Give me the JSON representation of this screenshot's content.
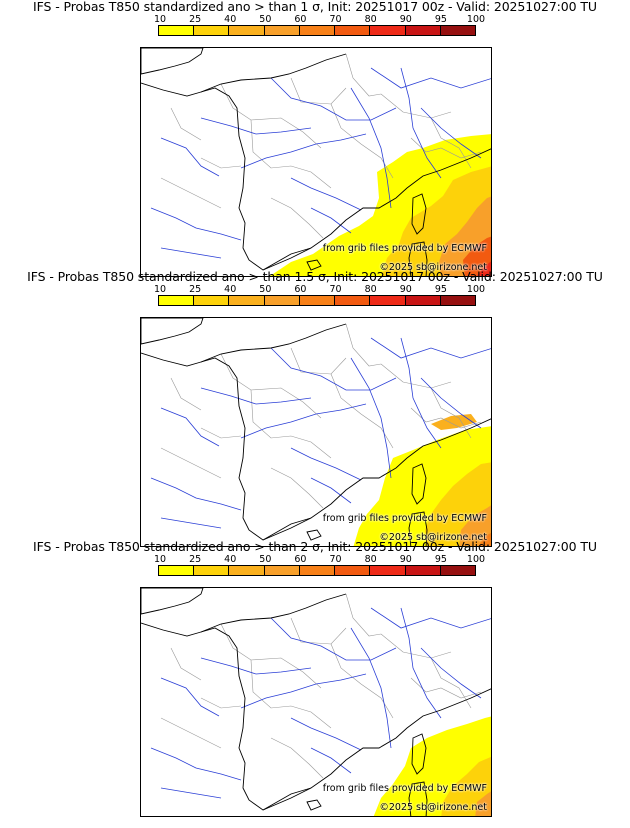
{
  "panels": [
    {
      "title": "IFS - Probas T850  standardized ano > than 1 σ, Init: 20251017 00z - Valid: 20251027:00 TU",
      "threshold": "1 σ",
      "coverage_level": 3
    },
    {
      "title": "IFS - Probas T850  standardized ano > than 1.5 σ, Init: 20251017 00z - Valid: 20251027:00 TU",
      "threshold": "1.5 σ",
      "coverage_level": 2
    },
    {
      "title": "IFS - Probas T850  standardized ano > than 2 σ, Init: 20251017 00z - Valid: 20251027:00 TU",
      "threshold": "2 σ",
      "coverage_level": 1
    }
  ],
  "colorbar": {
    "labels": [
      "10",
      "25",
      "40",
      "50",
      "60",
      "70",
      "80",
      "90",
      "95",
      "100"
    ],
    "colors": [
      "#ffff00",
      "#fdd20a",
      "#fab01e",
      "#f8a02a",
      "#f78018",
      "#f25a10",
      "#ee2a18",
      "#c81414",
      "#961010",
      "#640808"
    ]
  },
  "credits": {
    "line1": "from grib files provided by ECMWF",
    "line2": "©2025 sb@irizone.net"
  },
  "colors": {
    "border": "#000000",
    "rivers": "#2b3fd6",
    "admin_borders": "#9a9a9a"
  }
}
